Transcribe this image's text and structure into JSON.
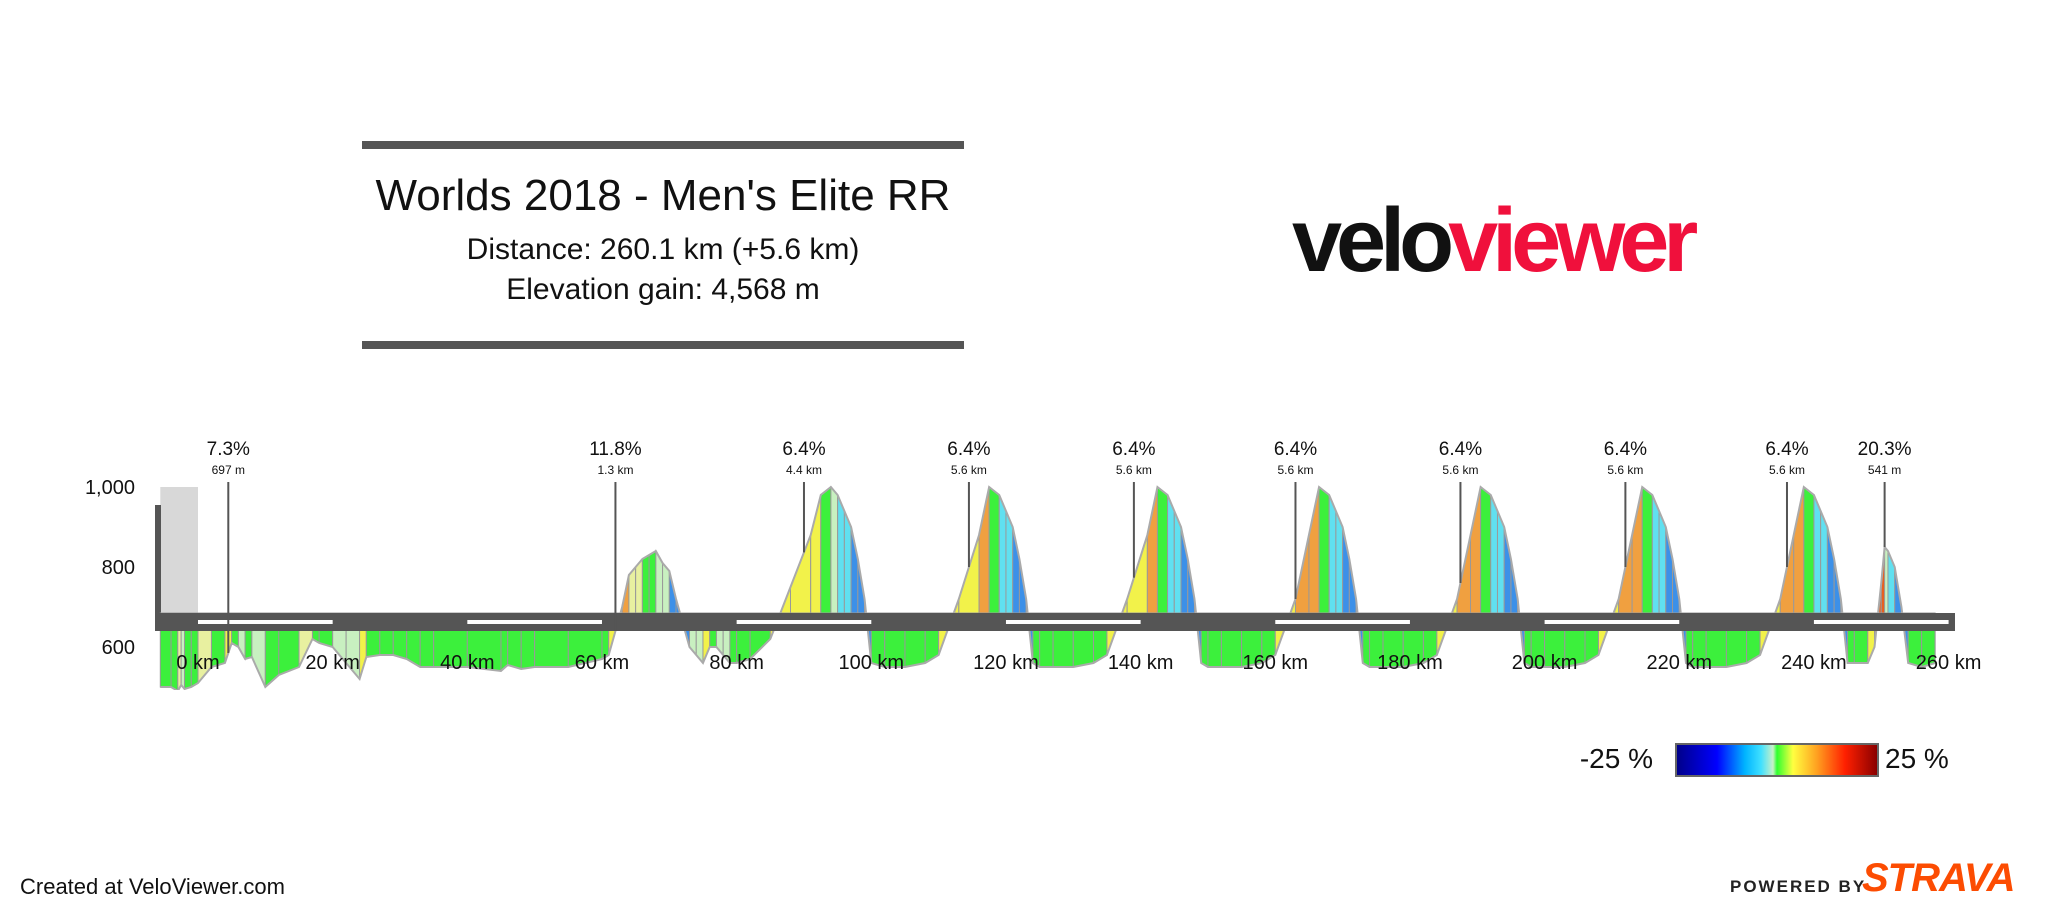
{
  "header": {
    "title": "Worlds 2018 - Men's Elite RR",
    "distance": "Distance: 260.1 km (+5.6 km)",
    "elevation_gain": "Elevation gain: 4,568 m"
  },
  "brand": {
    "logo_part1": "velo",
    "logo_part2": "viewer",
    "logo_color": "#f0103c"
  },
  "legend": {
    "min_label": "-25 %",
    "max_label": "25 %"
  },
  "footer": {
    "credit": "Created at VeloViewer.com",
    "powered_by": "POWERED BY",
    "strava": "STRAVA",
    "strava_color": "#fc4c02"
  },
  "chart_data": {
    "type": "area",
    "title": "",
    "xlabel": "",
    "ylabel": "",
    "x_unit": "km",
    "xlim": [
      -5.6,
      260.1
    ],
    "ylim": [
      400,
      1000
    ],
    "x_ticks": [
      "0 km",
      "20 km",
      "40 km",
      "60 km",
      "80 km",
      "100 km",
      "120 km",
      "140 km",
      "160 km",
      "180 km",
      "200 km",
      "220 km",
      "240 km",
      "260 km"
    ],
    "y_ticks": [
      "1,000",
      "800",
      "600"
    ],
    "profile": {
      "x": [
        -5.6,
        -4,
        -3,
        -2.5,
        -2,
        -1,
        0,
        2,
        4,
        5,
        6,
        7,
        8,
        10,
        12,
        15,
        17,
        18,
        20,
        22,
        24,
        25,
        27,
        29,
        31,
        33,
        35,
        40,
        45,
        46,
        48,
        50,
        55,
        60,
        61,
        62,
        63,
        64,
        65,
        66,
        67,
        68,
        69,
        70,
        71,
        72,
        73,
        74,
        75,
        76,
        77,
        78,
        79,
        80,
        82,
        85,
        88,
        91,
        92.5,
        94,
        95,
        96,
        97,
        98,
        99,
        100,
        102,
        105,
        108,
        110,
        113,
        116,
        117.5,
        119,
        120,
        121,
        122,
        123,
        124,
        125,
        127,
        130,
        133,
        135,
        138,
        141,
        142.5,
        144,
        145,
        146,
        147,
        148,
        149,
        150,
        152,
        155,
        158,
        160,
        163,
        165,
        166.5,
        168,
        169,
        170,
        171,
        172,
        173,
        174,
        176,
        179,
        182,
        184,
        187,
        189,
        190.5,
        192,
        193,
        194,
        195,
        196,
        197,
        198,
        200,
        203,
        206,
        208,
        211,
        213,
        214.5,
        216,
        217,
        218,
        219,
        220,
        221,
        222,
        224,
        227,
        230,
        232,
        235,
        237,
        238.5,
        240,
        241,
        242,
        243,
        244,
        245,
        246,
        248,
        249,
        250,
        250.5,
        251,
        252,
        253,
        254,
        256,
        258,
        260.1
      ],
      "elevation": [
        500,
        500,
        490,
        505,
        495,
        500,
        510,
        550,
        560,
        610,
        600,
        570,
        575,
        500,
        530,
        550,
        620,
        610,
        600,
        560,
        520,
        575,
        580,
        580,
        570,
        550,
        550,
        550,
        540,
        555,
        545,
        550,
        550,
        570,
        580,
        640,
        700,
        780,
        800,
        820,
        830,
        840,
        810,
        790,
        720,
        660,
        600,
        580,
        560,
        600,
        600,
        580,
        560,
        560,
        570,
        620,
        750,
        880,
        980,
        1000,
        980,
        940,
        900,
        820,
        720,
        560,
        550,
        550,
        560,
        580,
        720,
        880,
        1000,
        980,
        940,
        900,
        820,
        720,
        560,
        550,
        550,
        550,
        560,
        580,
        720,
        880,
        1000,
        980,
        940,
        900,
        820,
        720,
        560,
        550,
        550,
        550,
        560,
        580,
        720,
        880,
        1000,
        980,
        940,
        900,
        820,
        720,
        560,
        550,
        550,
        550,
        560,
        580,
        720,
        880,
        1000,
        980,
        940,
        900,
        820,
        720,
        560,
        550,
        550,
        550,
        560,
        580,
        720,
        880,
        1000,
        980,
        940,
        900,
        820,
        720,
        560,
        550,
        550,
        550,
        560,
        580,
        720,
        880,
        1000,
        980,
        940,
        900,
        820,
        720,
        560,
        560,
        560,
        600,
        760,
        850,
        840,
        800,
        700,
        560,
        550,
        560
      ]
    },
    "climbs": [
      {
        "km": 4.5,
        "gradient": "7.3%",
        "length": "697 m"
      },
      {
        "km": 62,
        "gradient": "11.8%",
        "length": "1.3 km"
      },
      {
        "km": 90,
        "gradient": "6.4%",
        "length": "4.4 km"
      },
      {
        "km": 114.5,
        "gradient": "6.4%",
        "length": "5.6 km"
      },
      {
        "km": 139,
        "gradient": "6.4%",
        "length": "5.6 km"
      },
      {
        "km": 163,
        "gradient": "6.4%",
        "length": "5.6 km"
      },
      {
        "km": 187.5,
        "gradient": "6.4%",
        "length": "5.6 km"
      },
      {
        "km": 212,
        "gradient": "6.4%",
        "length": "5.6 km"
      },
      {
        "km": 236,
        "gradient": "6.4%",
        "length": "5.6 km"
      },
      {
        "km": 250.5,
        "gradient": "20.3%",
        "length": "541 m"
      }
    ],
    "gradient_scale": {
      "min": -25,
      "max": 25,
      "unit": "%"
    }
  }
}
